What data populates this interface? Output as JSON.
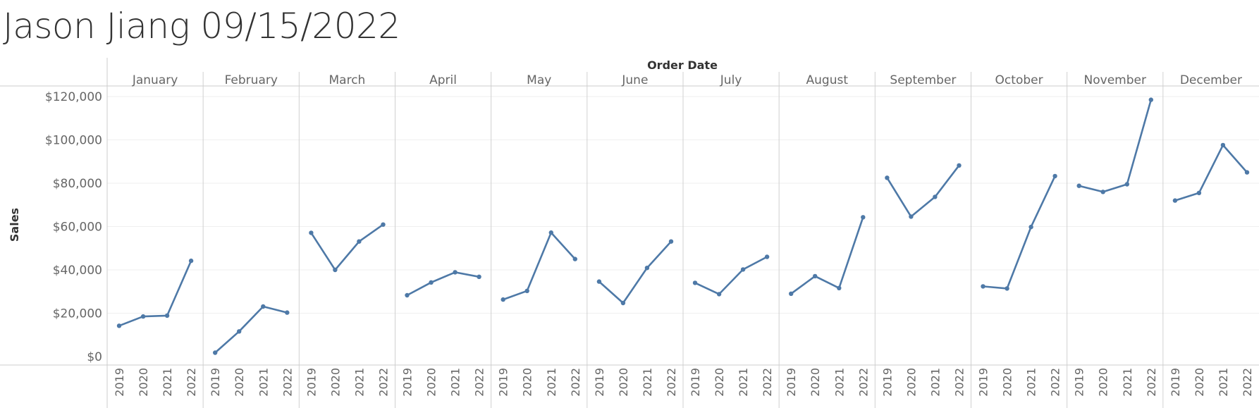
{
  "title": "Jason Jiang 09/15/2022",
  "chart_data": {
    "type": "line",
    "column_header": "Order Date",
    "ylabel": "Sales",
    "ylim": [
      0,
      120000
    ],
    "y_ticks": [
      {
        "value": 0,
        "label": "$0"
      },
      {
        "value": 20000,
        "label": "$20,000"
      },
      {
        "value": 40000,
        "label": "$40,000"
      },
      {
        "value": 60000,
        "label": "$60,000"
      },
      {
        "value": 80000,
        "label": "$80,000"
      },
      {
        "value": 100000,
        "label": "$100,000"
      },
      {
        "value": 120000,
        "label": "$120,000"
      }
    ],
    "years": [
      "2019",
      "2020",
      "2021",
      "2022"
    ],
    "line_color": "#4e79a7",
    "months": [
      {
        "name": "January",
        "values": [
          14200,
          18500,
          18900,
          44200
        ]
      },
      {
        "name": "February",
        "values": [
          1800,
          11600,
          23100,
          20300
        ]
      },
      {
        "name": "March",
        "values": [
          57100,
          40000,
          53100,
          60900
        ]
      },
      {
        "name": "April",
        "values": [
          28300,
          34200,
          38900,
          36800
        ]
      },
      {
        "name": "May",
        "values": [
          26300,
          30300,
          57200,
          45000
        ]
      },
      {
        "name": "June",
        "values": [
          34600,
          24700,
          40900,
          53100
        ]
      },
      {
        "name": "July",
        "values": [
          34000,
          28800,
          40200,
          46000
        ]
      },
      {
        "name": "August",
        "values": [
          29000,
          37100,
          31600,
          64300
        ]
      },
      {
        "name": "September",
        "values": [
          82500,
          64600,
          73700,
          88200
        ]
      },
      {
        "name": "October",
        "values": [
          32400,
          31400,
          59800,
          83300
        ]
      },
      {
        "name": "November",
        "values": [
          78800,
          76000,
          79500,
          118500
        ]
      },
      {
        "name": "December",
        "values": [
          72000,
          75500,
          97600,
          85000
        ]
      }
    ]
  }
}
